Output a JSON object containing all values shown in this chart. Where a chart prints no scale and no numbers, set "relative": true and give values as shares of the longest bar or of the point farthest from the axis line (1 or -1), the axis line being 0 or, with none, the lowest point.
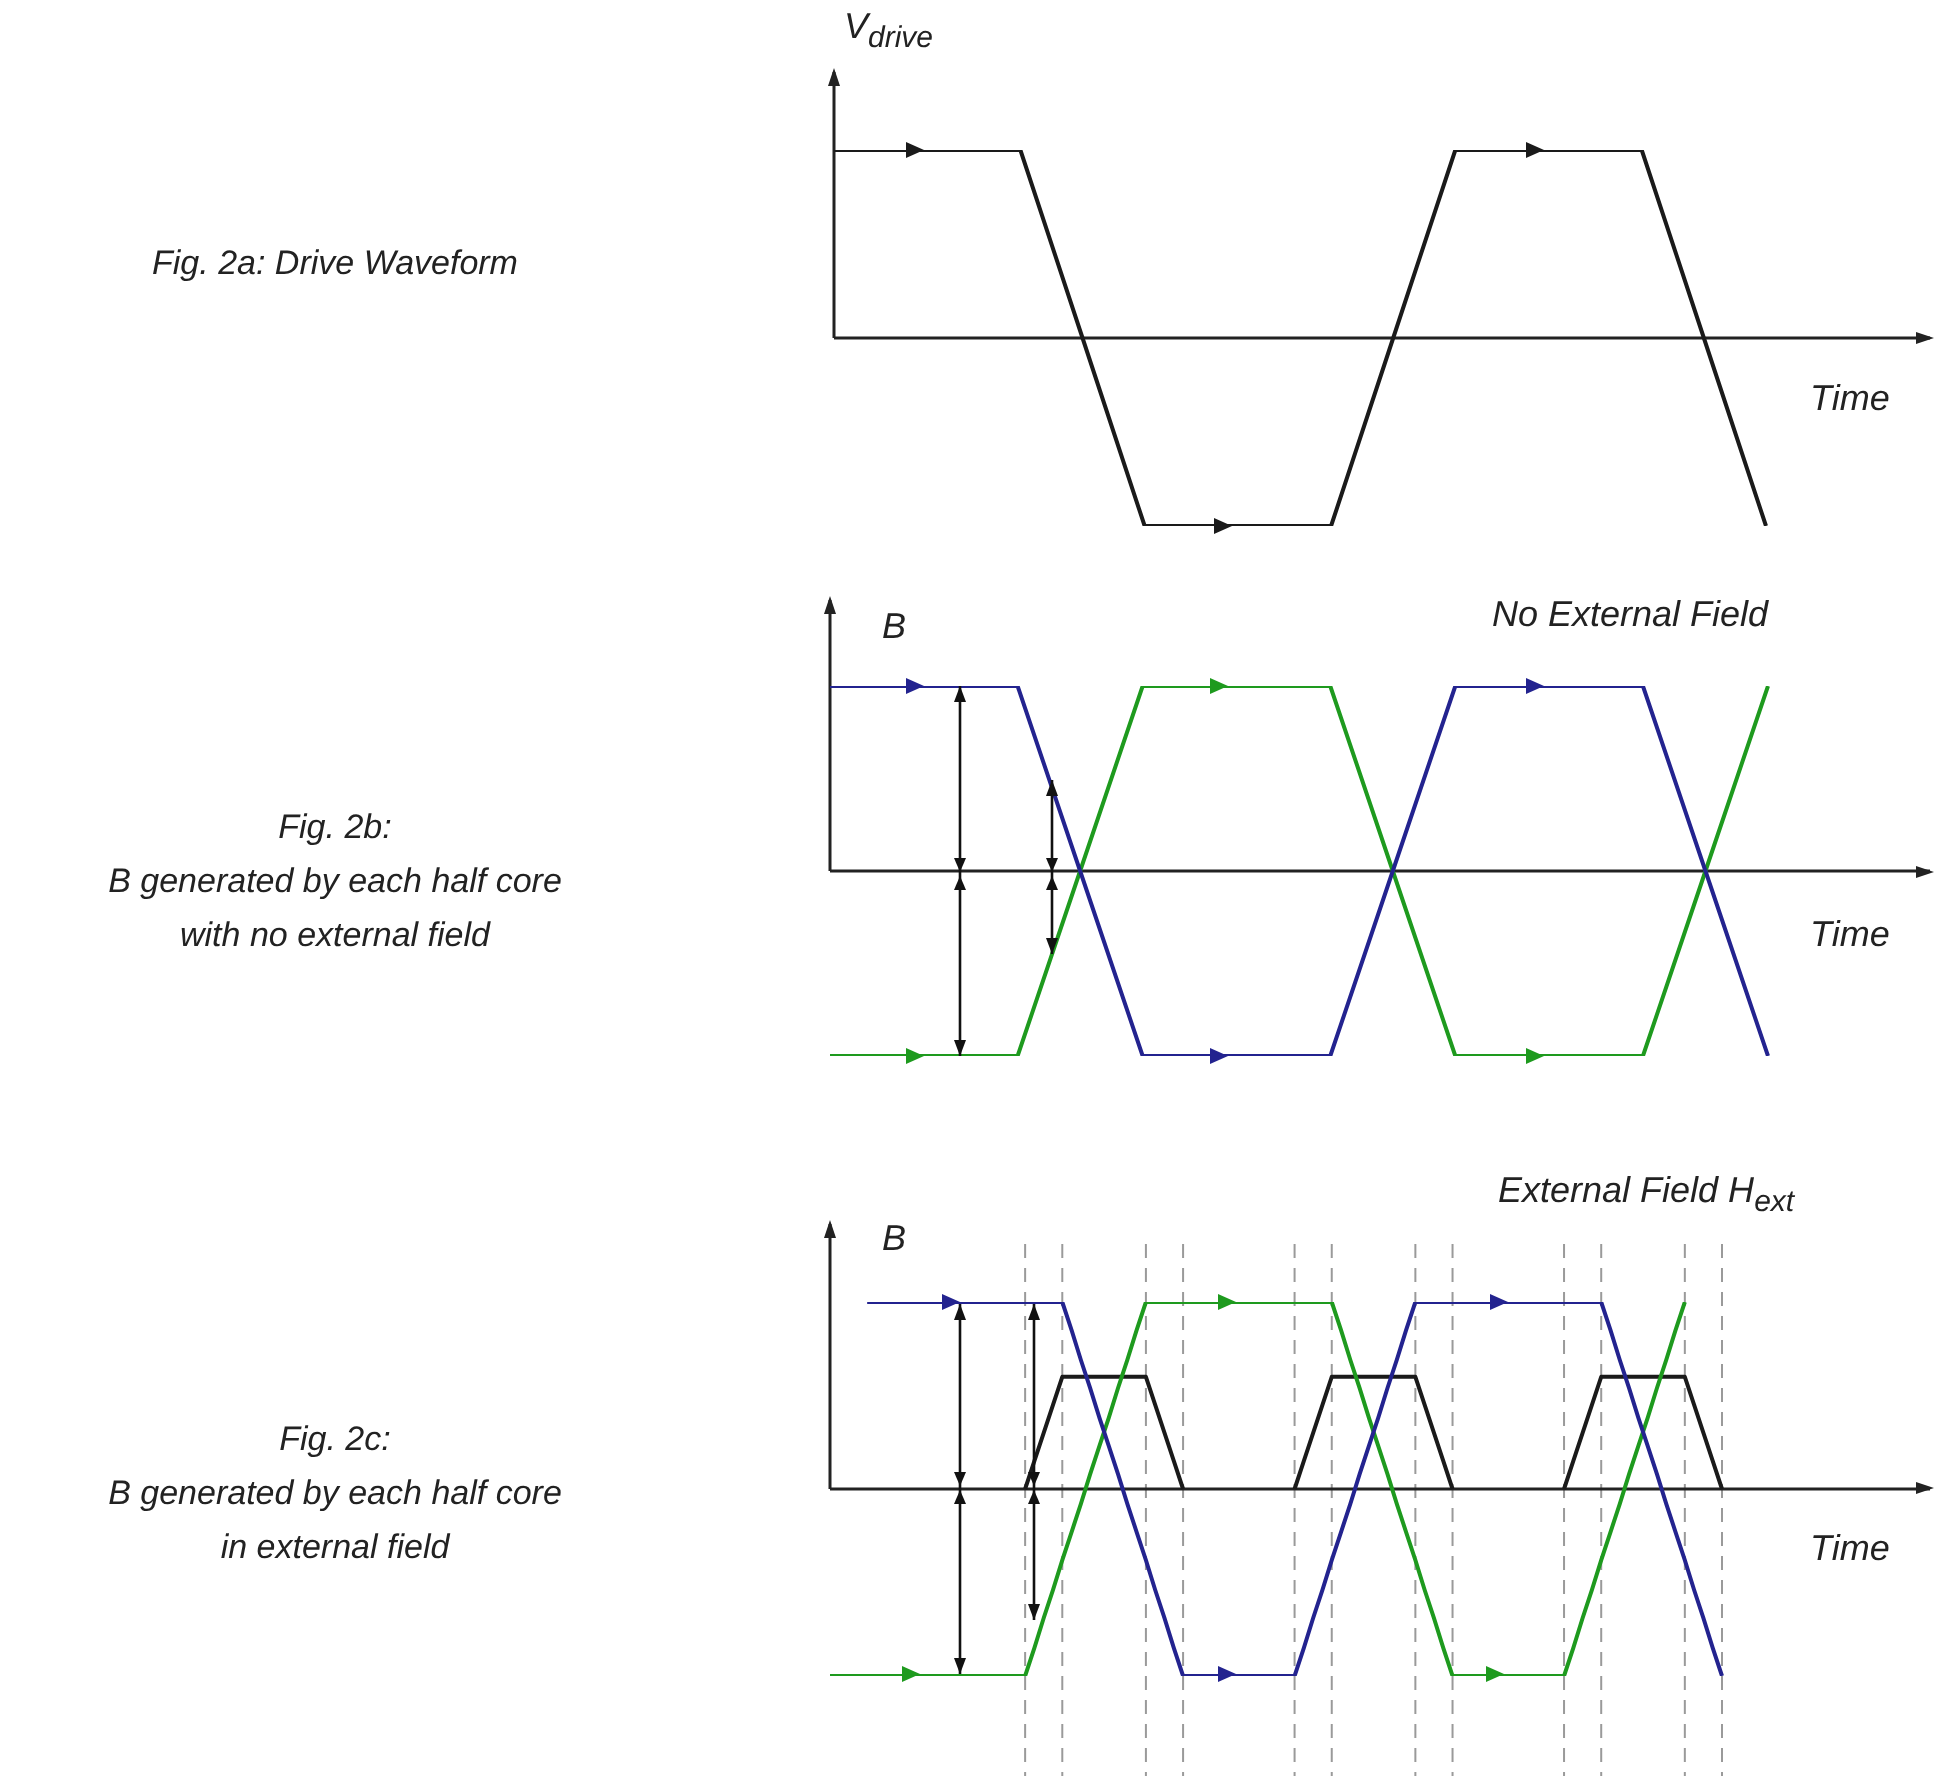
{
  "chart_data": [
    {
      "type": "line",
      "relative": true,
      "ylabel": "V$_{drive}$",
      "xlabel": "Time",
      "legend": false,
      "marker": "none",
      "line_style": "solid",
      "annotations": [
        "Fig. 2a: Drive Waveform"
      ],
      "categories": [
        null,
        null,
        null,
        null,
        null,
        null,
        null,
        null,
        null,
        null,
        null,
        null,
        null,
        null,
        null,
        null
      ],
      "series": [
        {
          "color": "#1a1a1a",
          "values": [
            1,
            1,
            1,
            1,
            0,
            -1,
            -1,
            -1,
            -1,
            0,
            1,
            1,
            1,
            1,
            0,
            -1
          ]
        }
      ]
    },
    {
      "type": "line",
      "relative": true,
      "title": "No External Field",
      "ylabel": "B",
      "xlabel": "Time",
      "legend": false,
      "marker": "none",
      "line_style": "solid",
      "annotations": [
        "Fig. 2b:\nB generated by each half core\nwith no external field"
      ],
      "categories": [
        null,
        null,
        null,
        null,
        null,
        null,
        null,
        null,
        null,
        null,
        null,
        null,
        null,
        null,
        null,
        null
      ],
      "series": [
        {
          "color": "#23238f",
          "values": [
            1,
            1,
            1,
            1,
            0,
            -1,
            -1,
            -1,
            -1,
            0,
            1,
            1,
            1,
            1,
            0,
            -1
          ]
        },
        {
          "color": "#1e9a1e",
          "values": [
            -1,
            -1,
            -1,
            -1,
            0,
            1,
            1,
            1,
            1,
            0,
            -1,
            -1,
            -1,
            -1,
            0,
            1
          ]
        }
      ]
    },
    {
      "type": "line",
      "relative": true,
      "title": "External Field H$_{ext}$",
      "ylabel": "B",
      "xlabel": "Time",
      "legend": false,
      "marker": "none",
      "line_style": "solid",
      "grid": "x",
      "annotations": [
        "Fig. 2c:\nB generated by each half core\nin external field"
      ],
      "categories": [
        null,
        null,
        null,
        null,
        null,
        null,
        null,
        null,
        null,
        null,
        null,
        null,
        null,
        null,
        null,
        null,
        null,
        null,
        null,
        null,
        null,
        null,
        null,
        null,
        null,
        null,
        null,
        null,
        null,
        null,
        null,
        null,
        null,
        null,
        null,
        null,
        null,
        null,
        null,
        null,
        null,
        null,
        null,
        null,
        null,
        null,
        null,
        null,
        null,
        null,
        null,
        null,
        null,
        null,
        null,
        null,
        null,
        null,
        null,
        null,
        null,
        null,
        null,
        null,
        null,
        null,
        null,
        null,
        null,
        null,
        null,
        null,
        null,
        null,
        null,
        null,
        null,
        null,
        null,
        null,
        null,
        null,
        null,
        null,
        null,
        null,
        null,
        null,
        null,
        null,
        null,
        null,
        null,
        null,
        null,
        null,
        null
      ],
      "series": [
        {
          "color": "#23238f",
          "values": [
            null,
            null,
            null,
            null,
            1,
            1,
            1,
            1,
            1,
            1,
            1,
            1,
            1,
            1,
            1,
            1,
            1,
            1,
            1,
            1,
            1,
            1,
            1,
            1,
            1,
            1,
            0.85,
            0.69,
            0.54,
            0.38,
            0.23,
            0.08,
            -0.08,
            -0.23,
            -0.38,
            -0.54,
            -0.69,
            -0.85,
            -1,
            -1,
            -1,
            -1,
            -1,
            -1,
            -1,
            -1,
            -1,
            -1,
            -1,
            -1,
            -1,
            -0.85,
            -0.69,
            -0.54,
            -0.38,
            -0.23,
            -0.08,
            0.08,
            0.23,
            0.38,
            0.54,
            0.69,
            0.85,
            1,
            1,
            1,
            1,
            1,
            1,
            1,
            1,
            1,
            1,
            1,
            1,
            1,
            1,
            1,
            1,
            1,
            1,
            1,
            1,
            1,
            0.85,
            0.69,
            0.54,
            0.38,
            0.23,
            0.08,
            -0.08,
            -0.23,
            -0.38,
            -0.54,
            -0.69,
            -0.85,
            -1
          ]
        },
        {
          "color": "#1e9a1e",
          "values": [
            -1,
            -1,
            -1,
            -1,
            -1,
            -1,
            -1,
            -1,
            -1,
            -1,
            -1,
            -1,
            -1,
            -1,
            -1,
            -1,
            -1,
            -1,
            -1,
            -1,
            -1,
            -1,
            -0.85,
            -0.69,
            -0.54,
            -0.38,
            -0.23,
            -0.08,
            0.08,
            0.23,
            0.38,
            0.54,
            0.69,
            0.85,
            1,
            1,
            1,
            1,
            1,
            1,
            1,
            1,
            1,
            1,
            1,
            1,
            1,
            1,
            1,
            1,
            1,
            1,
            1,
            1,
            1,
            0.85,
            0.69,
            0.54,
            0.38,
            0.23,
            0.08,
            -0.08,
            -0.23,
            -0.38,
            -0.54,
            -0.69,
            -0.85,
            -1,
            -1,
            -1,
            -1,
            -1,
            -1,
            -1,
            -1,
            -1,
            -1,
            -1,
            -1,
            -1,
            -0.85,
            -0.69,
            -0.54,
            -0.38,
            -0.23,
            -0.08,
            0.08,
            0.23,
            0.38,
            0.54,
            0.69,
            0.85,
            1,
            null,
            null,
            null,
            null
          ]
        },
        {
          "color": "#1a1a1a",
          "values": [
            null,
            null,
            null,
            null,
            null,
            null,
            null,
            null,
            null,
            null,
            null,
            null,
            null,
            null,
            null,
            null,
            null,
            null,
            null,
            null,
            null,
            0,
            0.15,
            0.3,
            0.45,
            0.6,
            0.6,
            0.6,
            0.6,
            0.6,
            0.6,
            0.6,
            0.6,
            0.6,
            0.6,
            0.45,
            0.3,
            0.15,
            0,
            null,
            null,
            null,
            null,
            null,
            null,
            null,
            null,
            null,
            null,
            null,
            0,
            0.15,
            0.3,
            0.45,
            0.6,
            0.6,
            0.6,
            0.6,
            0.6,
            0.6,
            0.6,
            0.6,
            0.6,
            0.6,
            0.45,
            0.3,
            0.15,
            0,
            null,
            null,
            null,
            null,
            null,
            null,
            null,
            null,
            null,
            null,
            null,
            0,
            0.15,
            0.3,
            0.45,
            0.6,
            0.6,
            0.6,
            0.6,
            0.6,
            0.6,
            0.6,
            0.6,
            0.6,
            0.6,
            0.45,
            0.3,
            0.15,
            0
          ]
        }
      ]
    }
  ]
}
